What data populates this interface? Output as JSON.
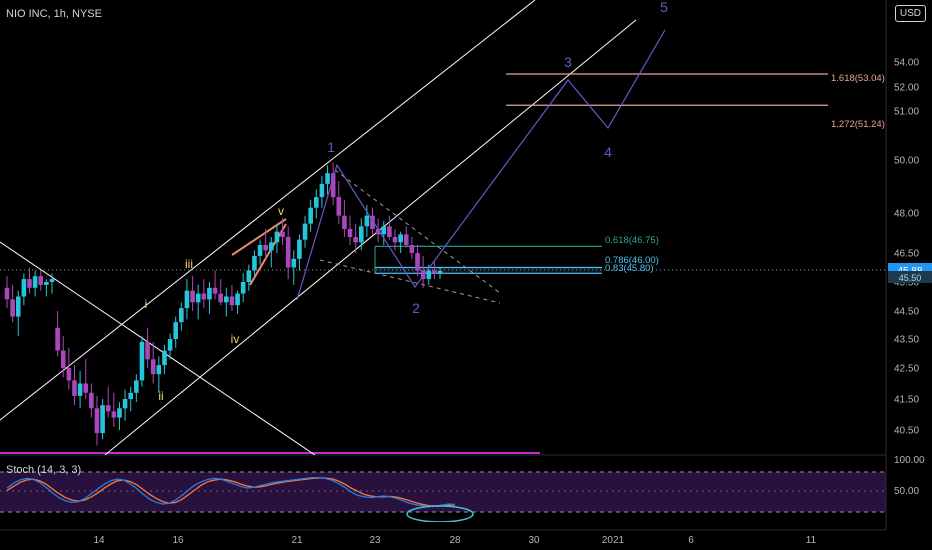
{
  "header": {
    "symbol": "NIO INC, 1h, NYSE",
    "currency": "USD"
  },
  "indicator": {
    "label": "Stoch (14, 3, 3)"
  },
  "chart_data": {
    "type": "candlestick",
    "y_axis": {
      "ticks": [
        "54.00",
        "52.00",
        "51.00",
        "50.00",
        "48.00",
        "46.50",
        "45.50",
        "44.50",
        "43.50",
        "42.50",
        "41.50",
        "40.50"
      ],
      "tick_values": [
        54,
        52,
        51,
        50,
        48,
        46.5,
        45.5,
        44.5,
        43.5,
        42.5,
        41.5,
        40.5
      ],
      "range": [
        40.5,
        54
      ]
    },
    "x_axis": {
      "ticks": [
        "14",
        "16",
        "21",
        "23",
        "28",
        "30",
        "2021",
        "6",
        "11"
      ]
    },
    "last_price": {
      "value": 45.88,
      "label": "45.88"
    },
    "fib_levels": [
      {
        "label": "1.618(53.04)",
        "value": 53.04,
        "color": "#e8a49a"
      },
      {
        "label": "1.272(51.24)",
        "value": 51.24,
        "color": "#e8a49a"
      },
      {
        "label": "0.618(46.75)",
        "value": 46.75,
        "color": "#26a69a"
      },
      {
        "label": "0.786(46.00)",
        "value": 46.0,
        "color": "#4fc3f7"
      },
      {
        "label": "0.83(45.80)",
        "value": 45.8,
        "color": "#4fc3f7"
      }
    ],
    "wave_labels": {
      "primary": [
        "1",
        "2",
        "3",
        "4",
        "5"
      ],
      "minor": [
        "i",
        "ii",
        "iii",
        "iv",
        "v"
      ]
    },
    "candles": [
      [
        45.3,
        45.7,
        44.6,
        44.9
      ],
      [
        44.9,
        45.4,
        44.1,
        44.3
      ],
      [
        44.3,
        45.2,
        43.6,
        45.0
      ],
      [
        45.0,
        45.8,
        44.7,
        45.6
      ],
      [
        45.6,
        46.0,
        45.1,
        45.3
      ],
      [
        45.3,
        45.9,
        45.0,
        45.7
      ],
      [
        45.7,
        45.9,
        45.2,
        45.4
      ],
      [
        45.4,
        45.6,
        45.0,
        45.5
      ],
      [
        45.5,
        45.8,
        45.1,
        45.6
      ],
      [
        43.9,
        44.5,
        42.9,
        43.1
      ],
      [
        43.1,
        43.6,
        42.2,
        42.5
      ],
      [
        42.5,
        43.2,
        41.8,
        42.1
      ],
      [
        42.1,
        42.6,
        41.3,
        41.6
      ],
      [
        41.6,
        42.4,
        41.2,
        42.0
      ],
      [
        42.0,
        42.8,
        41.5,
        41.7
      ],
      [
        41.7,
        42.0,
        40.9,
        41.2
      ],
      [
        41.2,
        41.6,
        40.0,
        40.4
      ],
      [
        40.4,
        41.5,
        40.2,
        41.3
      ],
      [
        41.3,
        41.9,
        40.9,
        41.1
      ],
      [
        41.1,
        41.7,
        40.6,
        40.9
      ],
      [
        40.9,
        41.4,
        40.5,
        41.2
      ],
      [
        41.2,
        41.8,
        40.8,
        41.5
      ],
      [
        41.5,
        41.9,
        41.1,
        41.7
      ],
      [
        41.7,
        42.3,
        41.4,
        42.1
      ],
      [
        42.1,
        43.6,
        41.9,
        43.4
      ],
      [
        43.4,
        43.9,
        42.5,
        42.8
      ],
      [
        42.8,
        43.4,
        42.0,
        42.3
      ],
      [
        42.3,
        42.9,
        41.7,
        42.6
      ],
      [
        42.6,
        43.3,
        42.3,
        43.1
      ],
      [
        43.1,
        43.7,
        42.8,
        43.5
      ],
      [
        43.5,
        44.3,
        43.2,
        44.1
      ],
      [
        44.1,
        44.8,
        43.8,
        44.6
      ],
      [
        44.6,
        45.6,
        44.2,
        45.2
      ],
      [
        45.2,
        45.7,
        44.5,
        44.8
      ],
      [
        44.8,
        45.4,
        44.2,
        45.1
      ],
      [
        45.1,
        45.6,
        44.6,
        44.9
      ],
      [
        44.9,
        45.5,
        44.4,
        45.3
      ],
      [
        45.3,
        45.9,
        44.9,
        45.1
      ],
      [
        45.1,
        45.6,
        44.7,
        44.8
      ],
      [
        44.8,
        45.3,
        44.3,
        45.0
      ],
      [
        45.0,
        45.4,
        44.5,
        44.7
      ],
      [
        44.7,
        45.2,
        44.4,
        45.1
      ],
      [
        45.1,
        45.8,
        44.8,
        45.5
      ],
      [
        45.5,
        46.1,
        45.2,
        45.9
      ],
      [
        45.9,
        46.6,
        45.6,
        46.4
      ],
      [
        46.4,
        47.0,
        46.1,
        46.8
      ],
      [
        46.8,
        47.4,
        46.3,
        46.6
      ],
      [
        46.6,
        47.1,
        46.0,
        46.9
      ],
      [
        46.9,
        47.6,
        46.5,
        47.3
      ],
      [
        47.3,
        47.8,
        46.8,
        47.1
      ],
      [
        47.1,
        47.5,
        45.6,
        46.0
      ],
      [
        46.0,
        46.6,
        45.4,
        46.3
      ],
      [
        46.3,
        47.2,
        45.9,
        47.0
      ],
      [
        47.0,
        47.9,
        46.7,
        47.6
      ],
      [
        47.6,
        48.5,
        47.3,
        48.2
      ],
      [
        48.2,
        48.9,
        47.8,
        48.6
      ],
      [
        48.6,
        49.4,
        48.2,
        49.1
      ],
      [
        49.1,
        49.8,
        48.7,
        49.5
      ],
      [
        49.5,
        49.9,
        48.3,
        48.6
      ],
      [
        48.6,
        49.2,
        47.6,
        47.9
      ],
      [
        47.9,
        48.5,
        47.1,
        47.4
      ],
      [
        47.4,
        47.9,
        46.8,
        47.1
      ],
      [
        47.1,
        47.6,
        46.5,
        46.9
      ],
      [
        46.9,
        47.8,
        46.6,
        47.5
      ],
      [
        47.5,
        48.3,
        47.1,
        47.9
      ],
      [
        47.9,
        48.2,
        47.2,
        47.4
      ],
      [
        47.4,
        47.8,
        46.9,
        47.2
      ],
      [
        47.2,
        47.7,
        46.8,
        47.5
      ],
      [
        47.5,
        47.9,
        47.0,
        47.1
      ],
      [
        47.1,
        47.4,
        46.6,
        46.9
      ],
      [
        46.9,
        47.3,
        46.5,
        47.2
      ],
      [
        47.2,
        47.5,
        46.7,
        46.8
      ],
      [
        46.8,
        47.1,
        46.3,
        46.5
      ],
      [
        46.5,
        46.8,
        45.7,
        45.9
      ],
      [
        45.9,
        46.4,
        45.3,
        45.6
      ],
      [
        45.6,
        46.1,
        45.4,
        45.9
      ],
      [
        45.9,
        46.2,
        45.6,
        45.8
      ],
      [
        45.8,
        46.0,
        45.6,
        45.88
      ]
    ],
    "stochastic": {
      "axis_ticks": [
        "100.00",
        "50.00"
      ],
      "k": [
        60,
        72,
        80,
        84,
        82,
        74,
        62,
        48,
        36,
        28,
        24,
        26,
        34,
        46,
        58,
        70,
        78,
        82,
        80,
        70,
        58,
        44,
        32,
        24,
        20,
        22,
        30,
        42,
        56,
        68,
        76,
        82,
        84,
        82,
        76,
        70,
        64,
        60,
        62,
        66,
        70,
        74,
        76,
        78,
        80,
        82,
        84,
        86,
        86,
        84,
        80,
        72,
        62,
        50,
        42,
        38,
        36,
        38,
        40,
        38,
        34,
        28,
        22,
        18,
        16,
        14,
        15,
        17,
        20,
        19
      ],
      "d": [
        54,
        64,
        74,
        80,
        82,
        78,
        70,
        58,
        46,
        36,
        30,
        27,
        30,
        38,
        48,
        60,
        70,
        78,
        80,
        76,
        68,
        56,
        44,
        34,
        26,
        22,
        24,
        32,
        44,
        56,
        68,
        76,
        80,
        82,
        80,
        76,
        70,
        65,
        62,
        63,
        66,
        70,
        73,
        76,
        78,
        80,
        82,
        84,
        85,
        85,
        83,
        78,
        70,
        60,
        52,
        44,
        40,
        38,
        38,
        39,
        37,
        33,
        28,
        23,
        19,
        16,
        15,
        15,
        17,
        18
      ]
    }
  }
}
